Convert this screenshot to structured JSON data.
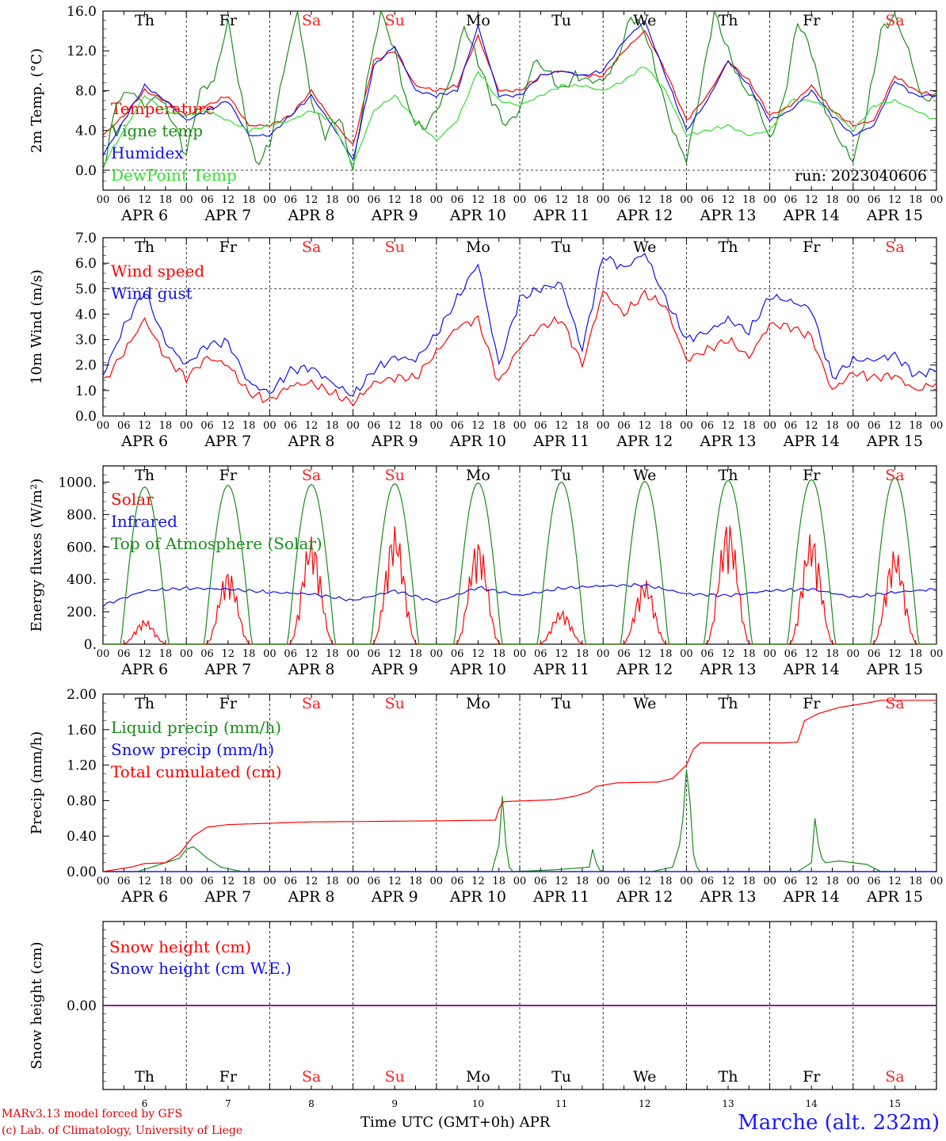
{
  "station": "Marche (alt. 232m)",
  "credits": [
    "MARv3.13 model forced by GFS",
    "(c) Lab. of Climatology, University of Liege"
  ],
  "xaxis_title": "Time UTC (GMT+0h) APR",
  "run_label": "run: 2023040606",
  "hour_ticks": [
    "00",
    "06",
    "12",
    "18"
  ],
  "date_labels": [
    "APR  6",
    "APR  7",
    "APR  8",
    "APR  9",
    "APR 10",
    "APR 11",
    "APR 12",
    "APR 13",
    "APR 14",
    "APR 15"
  ],
  "day_numbers": [
    "6",
    "7",
    "8",
    "9",
    "10",
    "11",
    "12",
    "13",
    "14",
    "15"
  ],
  "weekdays": [
    {
      "label": "Th",
      "weekend": false
    },
    {
      "label": "Fr",
      "weekend": false
    },
    {
      "label": "Sa",
      "weekend": true
    },
    {
      "label": "Su",
      "weekend": true
    },
    {
      "label": "Mo",
      "weekend": false
    },
    {
      "label": "Tu",
      "weekend": false
    },
    {
      "label": "We",
      "weekend": false
    },
    {
      "label": "Th",
      "weekend": false
    },
    {
      "label": "Fr",
      "weekend": false
    },
    {
      "label": "Sa",
      "weekend": true
    }
  ],
  "colors": {
    "red": "#ff0000",
    "green": "#1a8c1a",
    "blue": "#1010ee",
    "lightgreen": "#33dd33",
    "purple": "#800080",
    "weekend": "#ff2020"
  },
  "chart_data": [
    {
      "type": "line",
      "ylabel": "2m Temp. (°C)",
      "ylim": [
        -2.0,
        16.0
      ],
      "yticks": [
        "0.0",
        "4.0",
        "8.0",
        "12.0",
        "16.0"
      ],
      "x_unit": "hours since APR 6 00 UTC",
      "series": [
        {
          "name": "Temperature",
          "color": "#ff0000",
          "x": [
            0,
            6,
            12,
            18,
            24,
            30,
            36,
            42,
            48,
            54,
            60,
            66,
            72,
            78,
            84,
            90,
            96,
            102,
            108,
            114,
            120,
            126,
            132,
            138,
            144,
            150,
            156,
            162,
            168,
            174,
            180,
            186,
            192,
            198,
            204,
            210,
            216,
            222,
            228,
            234,
            240
          ],
          "y": [
            3.5,
            5.5,
            8.0,
            7.0,
            5.5,
            6.5,
            7.5,
            4.5,
            4.5,
            5.5,
            8.0,
            5.0,
            2.5,
            11.0,
            12.0,
            8.5,
            8.0,
            8.5,
            13.5,
            8.0,
            8.0,
            9.5,
            10.0,
            9.5,
            9.5,
            12.0,
            14.0,
            10.0,
            5.0,
            7.5,
            11.0,
            9.0,
            5.5,
            6.5,
            8.5,
            6.0,
            4.5,
            5.0,
            9.5,
            8.0,
            7.5
          ]
        },
        {
          "name": "Vigne temp",
          "color": "#1a8c1a",
          "x": [
            0,
            4,
            8,
            12,
            16,
            20,
            24,
            28,
            32,
            36,
            40,
            44,
            48,
            52,
            56,
            60,
            64,
            68,
            72,
            76,
            80,
            84,
            88,
            92,
            96,
            100,
            104,
            108,
            112,
            116,
            120,
            124,
            128,
            132,
            136,
            140,
            144,
            148,
            152,
            156,
            160,
            164,
            168,
            172,
            176,
            180,
            184,
            188,
            192,
            196,
            200,
            204,
            208,
            212,
            216,
            220,
            224,
            228,
            232,
            236,
            240
          ],
          "y": [
            0.0,
            7.0,
            8.0,
            6.5,
            7.5,
            5.0,
            1.5,
            8.0,
            9.0,
            15.0,
            7.0,
            0.5,
            2.5,
            10.0,
            16.0,
            7.0,
            3.5,
            5.5,
            0.0,
            9.0,
            16.0,
            12.0,
            6.0,
            4.0,
            6.0,
            9.0,
            14.5,
            11.0,
            7.0,
            4.5,
            6.0,
            11.0,
            10.0,
            8.0,
            9.5,
            9.0,
            9.0,
            11.0,
            15.5,
            14.0,
            9.0,
            4.0,
            1.0,
            8.0,
            16.0,
            12.0,
            8.5,
            7.0,
            3.0,
            7.0,
            15.0,
            12.0,
            6.0,
            3.0,
            1.0,
            6.0,
            14.0,
            15.5,
            12.0,
            7.0,
            7.5
          ]
        },
        {
          "name": "Humidex",
          "color": "#1010ee",
          "x": [
            0,
            6,
            12,
            18,
            24,
            30,
            36,
            42,
            48,
            54,
            60,
            66,
            72,
            78,
            84,
            90,
            96,
            102,
            108,
            114,
            120,
            126,
            132,
            138,
            144,
            150,
            156,
            162,
            168,
            174,
            180,
            186,
            192,
            198,
            204,
            210,
            216,
            222,
            228,
            234,
            240
          ],
          "y": [
            1.5,
            5.0,
            8.5,
            7.0,
            5.0,
            6.0,
            7.0,
            3.5,
            3.5,
            5.5,
            7.5,
            4.5,
            1.0,
            10.5,
            12.5,
            8.0,
            7.5,
            8.0,
            14.5,
            7.5,
            7.5,
            9.5,
            10.0,
            9.5,
            10.0,
            13.0,
            15.0,
            9.5,
            4.0,
            7.0,
            11.0,
            8.5,
            5.0,
            6.0,
            8.0,
            5.5,
            3.5,
            4.5,
            9.0,
            7.5,
            7.5
          ]
        },
        {
          "name": "DewPoint Temp",
          "color": "#33dd33",
          "x": [
            0,
            6,
            12,
            18,
            24,
            30,
            36,
            42,
            48,
            54,
            60,
            66,
            72,
            78,
            84,
            90,
            96,
            102,
            108,
            114,
            120,
            126,
            132,
            138,
            144,
            150,
            156,
            162,
            168,
            174,
            180,
            186,
            192,
            198,
            204,
            210,
            216,
            222,
            228,
            234,
            240
          ],
          "y": [
            0.5,
            4.0,
            7.5,
            6.0,
            5.5,
            6.0,
            5.0,
            4.0,
            4.5,
            5.0,
            6.0,
            5.0,
            0.5,
            6.0,
            7.5,
            5.0,
            3.0,
            5.0,
            10.0,
            7.0,
            6.5,
            7.5,
            8.5,
            8.5,
            8.0,
            9.0,
            10.5,
            8.0,
            3.5,
            4.0,
            4.5,
            3.5,
            4.0,
            7.0,
            7.0,
            6.0,
            4.0,
            6.5,
            7.0,
            6.0,
            5.0
          ]
        }
      ]
    },
    {
      "type": "line",
      "ylabel": "10m Wind (m/s)",
      "ylim": [
        0.0,
        7.0
      ],
      "yticks": [
        "0.0",
        "1.0",
        "2.0",
        "3.0",
        "4.0",
        "5.0",
        "6.0",
        "7.0"
      ],
      "series": [
        {
          "name": "Wind speed",
          "color": "#ff0000",
          "x": [
            0,
            6,
            12,
            18,
            24,
            30,
            36,
            42,
            48,
            54,
            60,
            66,
            72,
            78,
            84,
            90,
            96,
            102,
            108,
            114,
            120,
            126,
            132,
            138,
            144,
            150,
            156,
            162,
            168,
            174,
            180,
            186,
            192,
            198,
            204,
            210,
            216,
            222,
            228,
            234,
            240
          ],
          "y": [
            1.3,
            2.5,
            3.8,
            2.3,
            1.5,
            2.3,
            2.0,
            0.9,
            0.6,
            1.2,
            1.3,
            0.9,
            0.5,
            1.3,
            1.5,
            1.5,
            2.5,
            3.5,
            3.8,
            1.3,
            2.7,
            3.5,
            3.8,
            2.0,
            4.9,
            4.0,
            4.8,
            4.3,
            2.2,
            2.6,
            3.0,
            2.3,
            3.6,
            3.5,
            3.1,
            1.0,
            1.7,
            1.5,
            1.6,
            1.0,
            1.3
          ]
        },
        {
          "name": "Wind gust",
          "color": "#1010ee",
          "x": [
            0,
            6,
            12,
            18,
            24,
            30,
            36,
            42,
            48,
            54,
            60,
            66,
            72,
            78,
            84,
            90,
            96,
            102,
            108,
            114,
            120,
            126,
            132,
            138,
            144,
            150,
            156,
            162,
            168,
            174,
            180,
            186,
            192,
            198,
            204,
            210,
            216,
            222,
            228,
            234,
            240
          ],
          "y": [
            1.6,
            3.5,
            4.9,
            2.9,
            2.0,
            2.8,
            2.9,
            1.3,
            0.9,
            1.8,
            1.9,
            1.3,
            0.8,
            1.8,
            2.3,
            2.2,
            3.2,
            4.6,
            6.0,
            2.0,
            4.6,
            5.0,
            5.2,
            2.6,
            6.3,
            5.8,
            6.4,
            4.6,
            3.0,
            3.3,
            3.8,
            3.3,
            4.7,
            4.5,
            4.2,
            1.5,
            2.2,
            2.2,
            2.4,
            1.6,
            1.8
          ]
        }
      ]
    },
    {
      "type": "line",
      "ylabel": "Energy fluxes (W/m²)",
      "ylim": [
        0,
        1100
      ],
      "yticks": [
        "0.",
        "200.",
        "400.",
        "600.",
        "800.",
        "1000."
      ],
      "series": [
        {
          "name": "Solar",
          "color": "#ff0000",
          "day_peaks": [
            150,
            460,
            670,
            730,
            650,
            210,
            400,
            770,
            690,
            590
          ]
        },
        {
          "name": "Infrared",
          "color": "#1010ee",
          "x": [
            0,
            12,
            24,
            36,
            48,
            60,
            72,
            84,
            96,
            108,
            120,
            132,
            144,
            156,
            168,
            180,
            192,
            204,
            216,
            228,
            240
          ],
          "y": [
            240,
            330,
            345,
            340,
            320,
            310,
            270,
            330,
            260,
            350,
            300,
            345,
            360,
            365,
            310,
            300,
            330,
            340,
            290,
            320,
            340
          ]
        },
        {
          "name": "Top of Atmosphere (Solar)",
          "color": "#1a8c1a",
          "day_peaks": [
            970,
            980,
            985,
            990,
            995,
            1000,
            1005,
            1010,
            1015,
            1025
          ]
        }
      ],
      "solar_window_hours": [
        5.2,
        18.8
      ]
    },
    {
      "type": "line",
      "ylabel": "Precip (mm/h)",
      "ylim": [
        0.0,
        2.0
      ],
      "yticks": [
        "0.00",
        "0.40",
        "0.80",
        "1.20",
        "1.60",
        "2.00"
      ],
      "series": [
        {
          "name": "Liquid precip (mm/h)",
          "color": "#1a8c1a",
          "x": [
            0,
            10,
            14,
            18,
            22,
            24,
            26,
            28,
            30,
            34,
            40,
            60,
            100,
            112,
            114,
            115,
            116,
            117,
            118,
            130,
            140,
            141,
            142,
            143,
            144,
            158,
            164,
            166,
            167,
            168,
            169,
            170,
            171,
            172,
            200,
            204,
            205,
            206,
            207,
            208,
            212,
            220,
            224,
            240
          ],
          "y": [
            0,
            0,
            0.05,
            0.1,
            0.15,
            0.25,
            0.28,
            0.22,
            0.15,
            0.05,
            0,
            0,
            0,
            0,
            0.3,
            0.85,
            0.3,
            0.05,
            0,
            0.02,
            0.05,
            0.25,
            0.1,
            0.02,
            0,
            0,
            0.05,
            0.3,
            0.6,
            1.15,
            0.8,
            0.2,
            0.05,
            0,
            0,
            0.1,
            0.6,
            0.3,
            0.15,
            0.1,
            0.12,
            0.08,
            0,
            0
          ]
        },
        {
          "name": "Snow precip (mm/h)",
          "color": "#1010ee",
          "x": [
            0,
            240
          ],
          "y": [
            0,
            0
          ]
        },
        {
          "name": "Total cumulated (cm)",
          "color": "#ff0000",
          "x": [
            0,
            8,
            12,
            18,
            22,
            26,
            30,
            36,
            60,
            90,
            113,
            114,
            115,
            116,
            130,
            136,
            140,
            142,
            148,
            160,
            164,
            168,
            170,
            172,
            176,
            196,
            200,
            202,
            206,
            212,
            220,
            224,
            240
          ],
          "y": [
            0,
            0.05,
            0.09,
            0.1,
            0.2,
            0.4,
            0.5,
            0.53,
            0.56,
            0.57,
            0.58,
            0.7,
            0.78,
            0.79,
            0.81,
            0.85,
            0.9,
            0.96,
            1.0,
            1.01,
            1.05,
            1.2,
            1.38,
            1.45,
            1.45,
            1.45,
            1.46,
            1.7,
            1.78,
            1.85,
            1.9,
            1.93,
            1.93
          ]
        }
      ]
    },
    {
      "type": "line",
      "ylabel": "Snow height (cm)",
      "ylim": [
        -1.0,
        1.0
      ],
      "yticks": [
        "0.00"
      ],
      "series": [
        {
          "name": "Snow height (cm)",
          "color": "#ff0000",
          "x": [
            0,
            240
          ],
          "y": [
            0,
            0
          ]
        },
        {
          "name": "Snow height (cm W.E.)",
          "color": "#1010ee",
          "x": [
            0,
            240
          ],
          "y": [
            0,
            0
          ]
        }
      ]
    }
  ]
}
